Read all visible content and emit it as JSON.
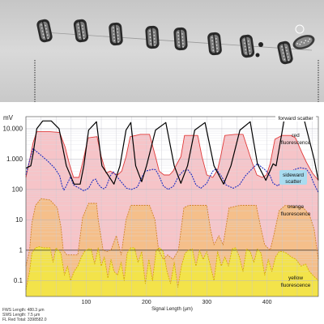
{
  "image": {
    "microscope_strip": {
      "subject": "chain of diatom cells",
      "cell_count": 9
    }
  },
  "chart_data": {
    "type": "line",
    "y_unit": "mV",
    "y_scale": "log",
    "ylim": [
      0.03,
      25000
    ],
    "yticks": [
      {
        "value": 10000,
        "label": "10.000"
      },
      {
        "value": 1000,
        "label": "1.000"
      },
      {
        "value": 100,
        "label": "100"
      },
      {
        "value": 10,
        "label": "10"
      },
      {
        "value": 1,
        "label": "1"
      },
      {
        "value": 0.1,
        "label": "0.1"
      }
    ],
    "xlim": [
      0,
      485
    ],
    "xticks": [
      100,
      200,
      300,
      400
    ],
    "xlabel": "Signal Length (µm)",
    "grid": true,
    "legend_placement": "right, next to each trace",
    "series": [
      {
        "name": "forward scatter",
        "color": "#000000",
        "x": [
          0,
          8,
          12,
          18,
          28,
          42,
          55,
          67,
          80,
          90,
          96,
          104,
          117,
          126,
          146,
          156,
          166,
          174,
          182,
          192,
          200,
          215,
          232,
          246,
          257,
          268,
          280,
          297,
          312,
          328,
          340,
          355,
          372,
          384,
          398,
          410,
          415,
          428,
          447,
          462,
          478,
          485
        ],
        "y": [
          500,
          600,
          1500,
          10000,
          18000,
          18000,
          10000,
          600,
          150,
          150,
          600,
          9000,
          17000,
          600,
          150,
          600,
          9000,
          16000,
          600,
          180,
          600,
          9000,
          16000,
          600,
          160,
          600,
          9000,
          16000,
          600,
          150,
          600,
          9000,
          17000,
          700,
          200,
          700,
          600,
          18000,
          18000,
          18000,
          1000,
          200
        ]
      },
      {
        "name": "red fluorescence",
        "color": "#e03a3a",
        "x": [
          0,
          6,
          12,
          18,
          40,
          56,
          65,
          72,
          79,
          88,
          95,
          103,
          118,
          125,
          133,
          140,
          145,
          152,
          159,
          166,
          173,
          190,
          205,
          215,
          221,
          229,
          238,
          244,
          257,
          263,
          270,
          285,
          292,
          300,
          310,
          318,
          323,
          330,
          347,
          360,
          375,
          383,
          392,
          399,
          405,
          413,
          425,
          440,
          447,
          458,
          465,
          475,
          485
        ],
        "y": [
          250,
          900,
          3500,
          8000,
          8000,
          7500,
          2500,
          700,
          250,
          250,
          900,
          5000,
          5500,
          1200,
          350,
          400,
          350,
          300,
          400,
          1200,
          5500,
          6500,
          6500,
          1200,
          400,
          300,
          300,
          400,
          1200,
          6000,
          6000,
          6000,
          1200,
          300,
          250,
          450,
          1200,
          6000,
          6500,
          6500,
          800,
          300,
          250,
          300,
          700,
          4500,
          6000,
          6000,
          5000,
          1600,
          800,
          350,
          200
        ]
      },
      {
        "name": "sideward scatter",
        "color": "#2030c0",
        "dashed": true,
        "x": [
          0,
          6,
          12,
          22,
          35,
          48,
          56,
          60,
          63,
          66,
          74,
          79,
          85,
          96,
          104,
          111,
          116,
          119,
          124,
          129,
          133,
          140,
          145,
          152,
          160,
          167,
          175,
          185,
          192,
          198,
          210,
          215,
          220,
          228,
          236,
          245,
          253,
          262,
          269,
          275,
          282,
          290,
          300,
          305,
          310,
          316,
          318,
          325,
          332,
          344,
          354,
          364,
          376,
          384,
          398,
          405,
          410,
          418,
          430,
          445,
          455,
          465,
          472,
          478,
          485
        ],
        "y": [
          300,
          900,
          2200,
          1500,
          900,
          500,
          280,
          130,
          95,
          120,
          260,
          140,
          120,
          90,
          110,
          200,
          220,
          160,
          120,
          105,
          120,
          280,
          380,
          250,
          160,
          110,
          100,
          120,
          250,
          400,
          460,
          450,
          300,
          130,
          100,
          130,
          270,
          420,
          440,
          300,
          140,
          110,
          160,
          260,
          400,
          480,
          400,
          260,
          140,
          110,
          140,
          280,
          500,
          700,
          420,
          280,
          160,
          130,
          250,
          450,
          520,
          480,
          300,
          150,
          80
        ]
      },
      {
        "name": "orange fluorescence",
        "color": "#d2842a",
        "dashed": true,
        "x": [
          0,
          6,
          10,
          16,
          25,
          40,
          52,
          58,
          62,
          68,
          76,
          86,
          94,
          104,
          117,
          120,
          128,
          134,
          141,
          150,
          158,
          166,
          174,
          188,
          205,
          214,
          220,
          228,
          235,
          244,
          253,
          262,
          270,
          292,
          300,
          306,
          312,
          320,
          327,
          337,
          355,
          370,
          382,
          390,
          396,
          405,
          411,
          420,
          430,
          460,
          470,
          478,
          485
        ],
        "y": [
          0.3,
          1,
          8,
          30,
          50,
          45,
          25,
          6,
          1,
          0.7,
          0.7,
          0.7,
          12,
          35,
          35,
          10,
          1,
          0.9,
          1,
          3,
          0.7,
          10,
          30,
          30,
          30,
          10,
          1,
          0.5,
          0.7,
          0.5,
          1,
          25,
          30,
          30,
          30,
          5,
          1.5,
          3,
          1.5,
          25,
          30,
          30,
          30,
          5,
          1.5,
          1,
          3,
          20,
          30,
          25,
          15,
          5,
          0.5
        ]
      },
      {
        "name": "yellow fluorescence",
        "color": "#d4b000",
        "dashed": true,
        "x": [
          0,
          6,
          10,
          16,
          22,
          30,
          40,
          45,
          50,
          58,
          64,
          69,
          74,
          80,
          86,
          92,
          97,
          103,
          108,
          114,
          120,
          125,
          130,
          136,
          141,
          146,
          152,
          158,
          163,
          168,
          174,
          180,
          186,
          192,
          198,
          204,
          210,
          216,
          222,
          228,
          234,
          240,
          246,
          252,
          258,
          264,
          270,
          276,
          282,
          288,
          294,
          300,
          306,
          312,
          318,
          324,
          330,
          336,
          342,
          348,
          354,
          360,
          366,
          372,
          378,
          384,
          390,
          396,
          402,
          408,
          414,
          420,
          426,
          432,
          440,
          448,
          456,
          464,
          470,
          476,
          485
        ],
        "y": [
          0.05,
          0.2,
          0.8,
          1.2,
          1.3,
          1.2,
          1.2,
          0.4,
          1.2,
          0.8,
          0.15,
          0.3,
          0.1,
          0.2,
          0.3,
          0.6,
          0.9,
          1.1,
          1.1,
          0.35,
          1.2,
          0.3,
          0.6,
          0.12,
          0.5,
          0.2,
          0.15,
          0.4,
          0.1,
          0.8,
          1.2,
          1.2,
          0.4,
          0.9,
          0.08,
          0.5,
          0.1,
          1,
          1.2,
          0.9,
          0.2,
          0.08,
          0.4,
          0.06,
          0.3,
          0.8,
          1,
          1.1,
          0.3,
          1,
          0.5,
          0.9,
          0.3,
          0.1,
          0.9,
          0.3,
          0.6,
          0.3,
          1.1,
          1.2,
          0.6,
          0.2,
          1.1,
          0.9,
          0.4,
          1.1,
          0.8,
          0.15,
          0.5,
          0.2,
          0.6,
          0.9,
          0.9,
          0.8,
          0.6,
          0.5,
          0.3,
          0.35,
          0.2,
          0.15,
          0.1
        ]
      }
    ],
    "labels": {
      "forward_scatter": "forward scatter",
      "red_fluorescence_1": "red",
      "red_fluorescence_2": "fluorescence",
      "sideward_scatter_1": "sideward",
      "sideward_scatter_2": "scatter",
      "orange_fluorescence_1": "orange",
      "orange_fluorescence_2": "fluorescence",
      "yellow_fluorescence_1": "yellow",
      "yellow_fluorescence_2": "fluorescence"
    },
    "colors": {
      "red_fill": "#f6c4c8",
      "orange_fill": "#f5bf8a",
      "yellow_fill": "#f3e34a",
      "sideward_label_bg": "#a9dcf0"
    },
    "footer": {
      "fws_length": "FWS Length: 480.3 µm",
      "sws_length": "SWS Length: 7.5 µm",
      "fl_red_total": "FL Red Total: 3398582.0"
    }
  }
}
